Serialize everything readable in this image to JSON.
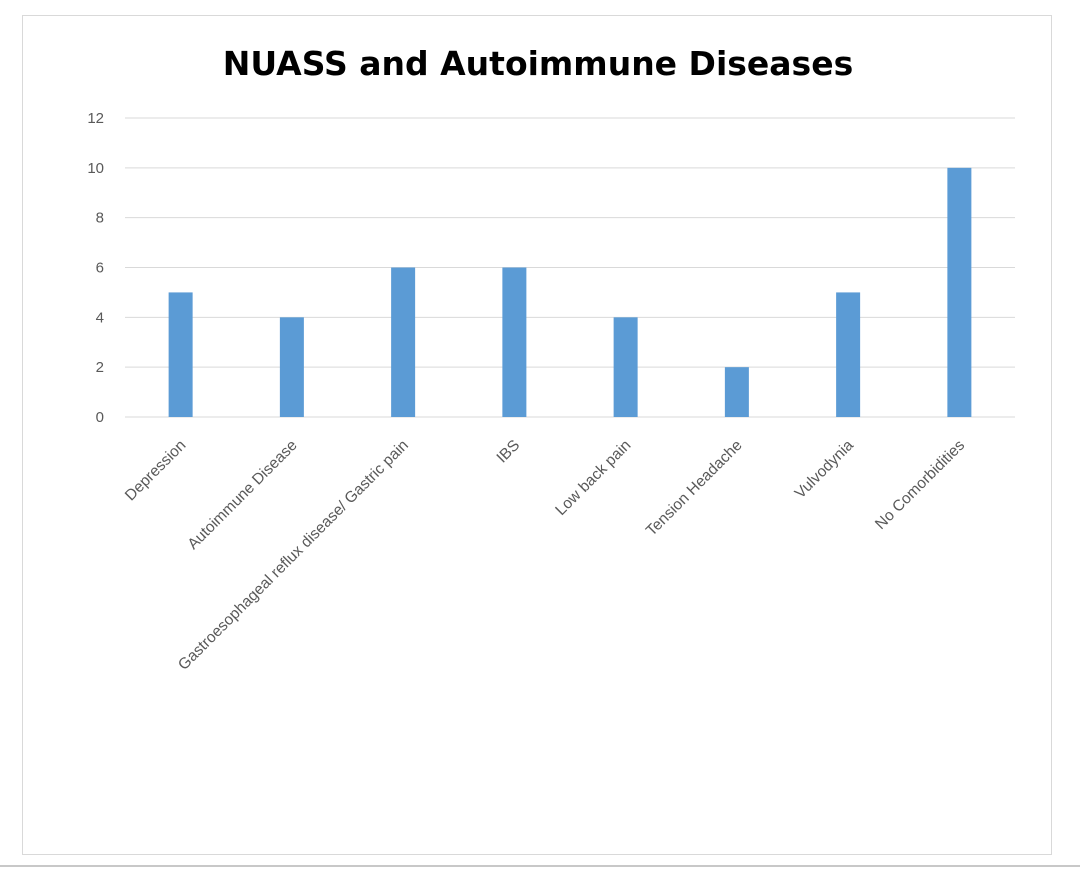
{
  "chart_data": {
    "type": "bar",
    "title": "NUASS and Autoimmune Diseases",
    "xlabel": "",
    "ylabel": "",
    "categories": [
      "Depression",
      "Autoimmune Disease",
      "Gastroesophageal reflux disease/ Gastric pain",
      "IBS",
      "Low back pain",
      "Tension Headache",
      "Vulvodynia",
      "No Comorbidities"
    ],
    "values": [
      5,
      4,
      6,
      6,
      4,
      2,
      5,
      10
    ],
    "ylim": [
      0,
      12
    ],
    "yticks": [
      0,
      2,
      4,
      6,
      8,
      10,
      12
    ],
    "bar_color": "#5b9bd5",
    "grid": true,
    "legend": "none"
  }
}
